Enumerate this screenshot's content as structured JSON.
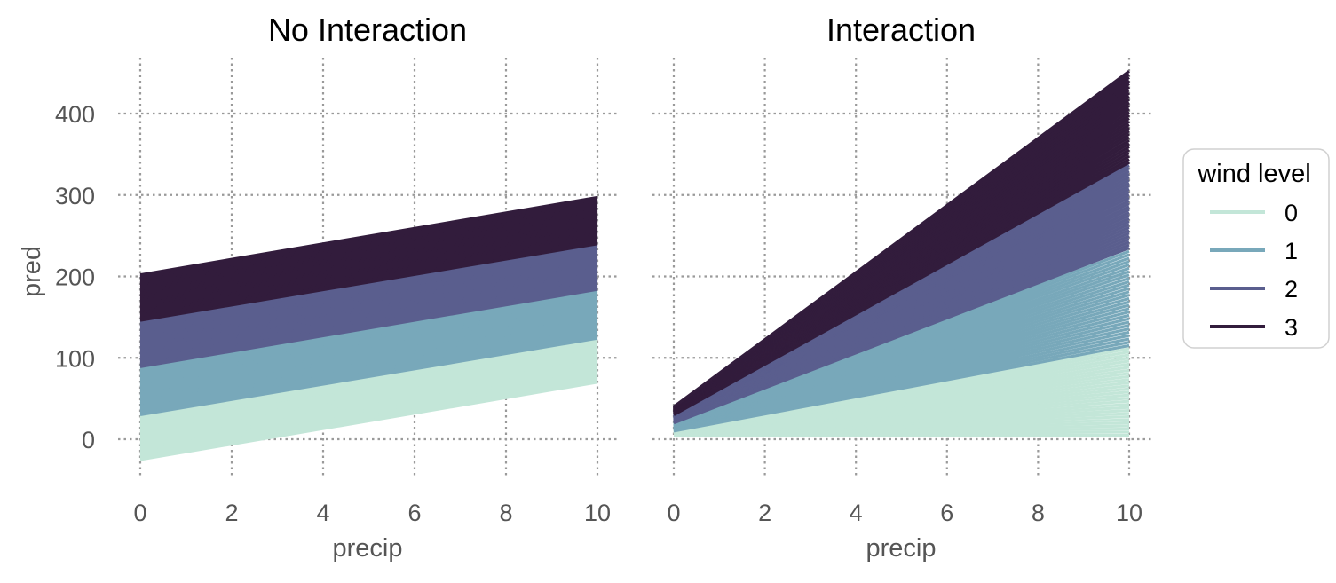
{
  "chart_data": {
    "type": "line",
    "colors": [
      "#c3e6d8",
      "#78a8ba",
      "#5a5e8e",
      "#321c3c"
    ],
    "legend": {
      "title": "wind level",
      "entries": [
        "0",
        "1",
        "2",
        "3"
      ],
      "placement": "right"
    },
    "shared_y_axis": {
      "label": "pred",
      "ticks": [
        0,
        100,
        200,
        300,
        400
      ],
      "range": [
        -50,
        470
      ]
    },
    "grid": true,
    "panels": [
      {
        "title": "No Interaction",
        "xlabel": "precip",
        "xticks": [
          0,
          2,
          4,
          6,
          8,
          10
        ],
        "xlim": [
          0,
          10
        ],
        "lines_per_level": 30,
        "series": [
          {
            "name": "0",
            "at_x0": [
              -25,
              30
            ],
            "at_x10": [
              70,
              124
            ]
          },
          {
            "name": "1",
            "at_x0": [
              30,
              89
            ],
            "at_x10": [
              124,
              184
            ]
          },
          {
            "name": "2",
            "at_x0": [
              89,
              146
            ],
            "at_x10": [
              184,
              240
            ]
          },
          {
            "name": "3",
            "at_x0": [
              146,
              202
            ],
            "at_x10": [
              240,
              297
            ]
          }
        ]
      },
      {
        "title": "Interaction",
        "xlabel": "precip",
        "xticks": [
          0,
          2,
          4,
          6,
          8,
          10
        ],
        "xlim": [
          0,
          10
        ],
        "lines_per_level": 30,
        "series": [
          {
            "name": "0",
            "at_x0": [
              5,
              10
            ],
            "at_x10": [
              5,
              115
            ]
          },
          {
            "name": "1",
            "at_x0": [
              10,
              20
            ],
            "at_x10": [
              115,
              235
            ]
          },
          {
            "name": "2",
            "at_x0": [
              20,
              30
            ],
            "at_x10": [
              235,
              340
            ]
          },
          {
            "name": "3",
            "at_x0": [
              30,
              40
            ],
            "at_x10": [
              340,
              452
            ]
          }
        ]
      }
    ]
  }
}
